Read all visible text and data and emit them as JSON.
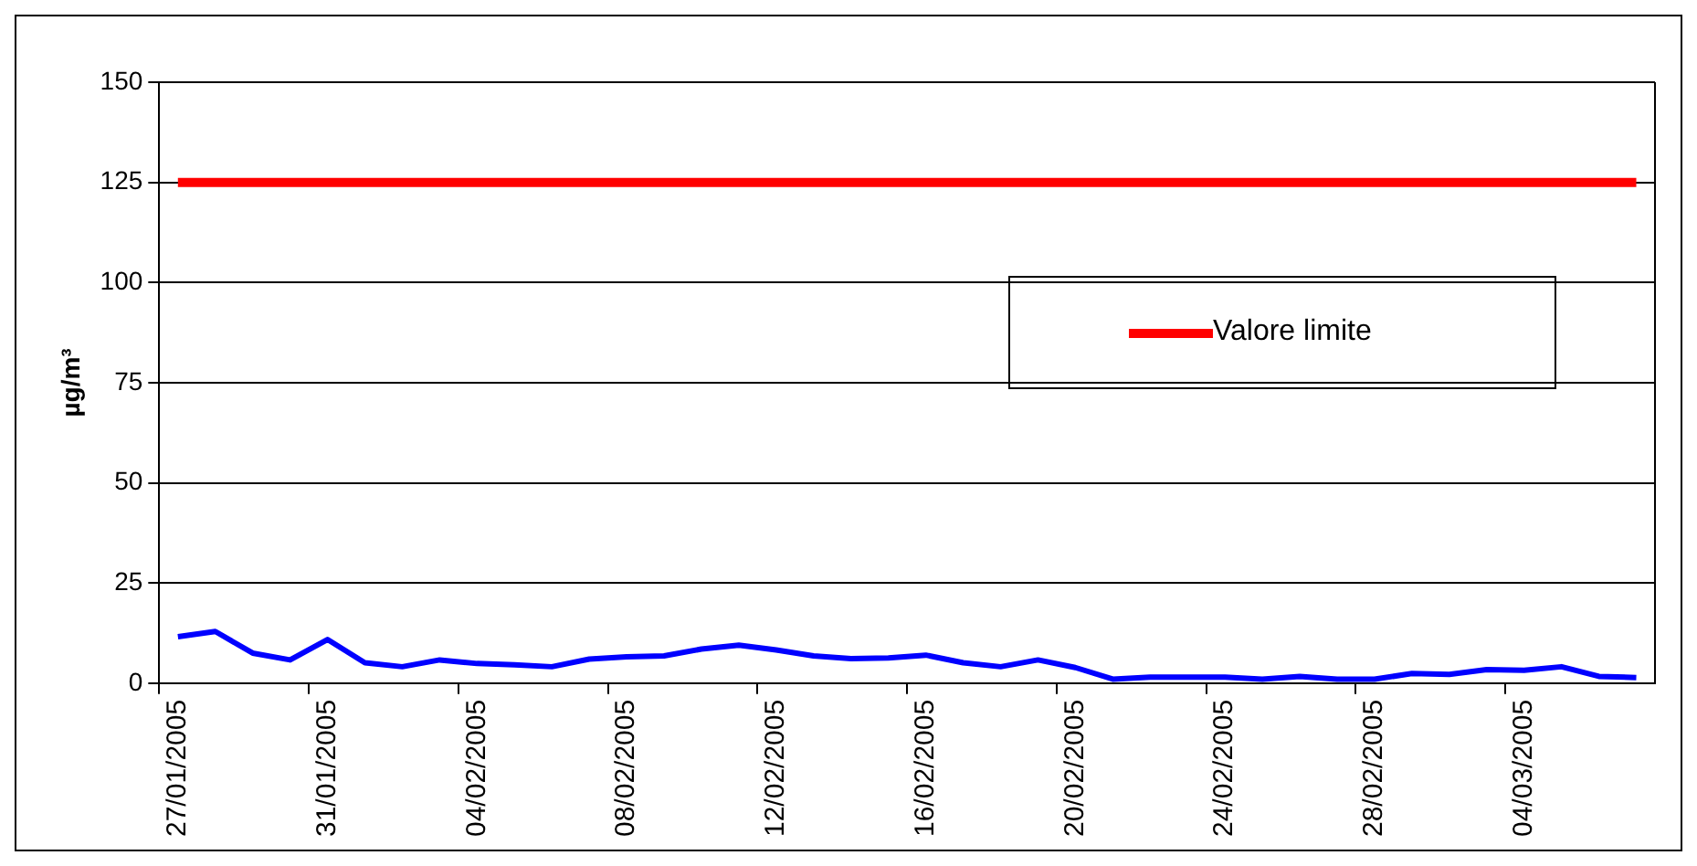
{
  "chart_data": {
    "type": "line",
    "ylabel": "µg/m³",
    "categories": [
      "27/01/2005",
      null,
      null,
      null,
      "31/01/2005",
      null,
      null,
      null,
      "04/02/2005",
      null,
      null,
      null,
      "08/02/2005",
      null,
      null,
      null,
      "12/02/2005",
      null,
      null,
      null,
      "16/02/2005",
      null,
      null,
      null,
      "20/02/2005",
      null,
      null,
      null,
      "24/02/2005",
      null,
      null,
      null,
      "28/02/2005",
      null,
      null,
      null,
      "04/03/2005",
      null,
      null,
      null
    ],
    "series": [
      {
        "color": "#0000ff",
        "values": [
          11.6,
          12.9,
          7.5,
          5.8,
          10.9,
          5.1,
          4.1,
          5.8,
          4.9,
          4.6,
          4.1,
          6.0,
          6.6,
          6.8,
          8.5,
          9.5,
          8.3,
          6.8,
          6.1,
          6.3,
          7.0,
          5.1,
          4.1,
          5.8,
          3.9,
          1.0,
          1.5,
          1.5,
          1.5,
          1.0,
          1.7,
          1.0,
          1.0,
          2.4,
          2.2,
          3.4,
          3.2,
          4.1,
          1.7,
          1.4
        ]
      },
      {
        "name": "Valore limite",
        "color": "#ff0000",
        "values": [
          125,
          125,
          125,
          125,
          125,
          125,
          125,
          125,
          125,
          125,
          125,
          125,
          125,
          125,
          125,
          125,
          125,
          125,
          125,
          125,
          125,
          125,
          125,
          125,
          125,
          125,
          125,
          125,
          125,
          125,
          125,
          125,
          125,
          125,
          125,
          125,
          125,
          125,
          125,
          125
        ]
      }
    ],
    "ylim": [
      0,
      150
    ],
    "yticks": [
      0,
      25,
      50,
      75,
      100,
      125,
      150
    ],
    "grid": "y",
    "legend": "right",
    "marker": "none",
    "line_style": "solid"
  }
}
